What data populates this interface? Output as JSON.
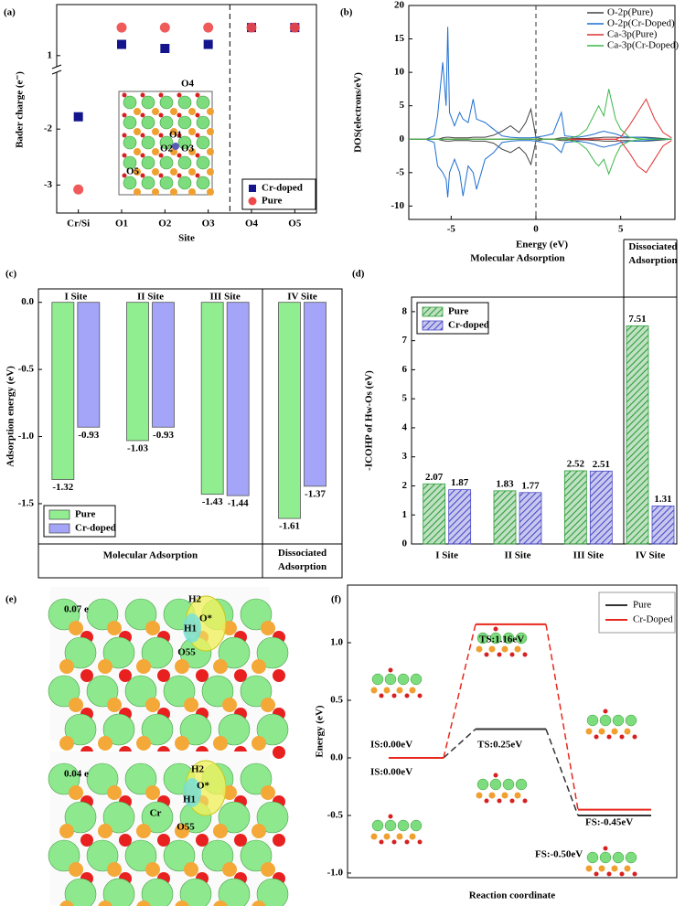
{
  "chart_data": [
    {
      "panel_label": "(a)",
      "type": "scatter",
      "xlabel": "Site",
      "ylabel": "Bader charge (e⁻)",
      "categories": [
        "Cr/Si",
        "O1",
        "O2",
        "O3",
        "O4",
        "O5"
      ],
      "series": [
        {
          "name": "Cr-doped",
          "color": "#14148c",
          "marker": "square",
          "values": [
            -1.78,
            1.22,
            1.14,
            1.22,
            1.55,
            1.55
          ]
        },
        {
          "name": "Pure",
          "color": "#f04848",
          "marker": "circle",
          "values": [
            -3.08,
            1.55,
            1.55,
            1.55,
            1.55,
            1.55
          ]
        }
      ],
      "ylim": [
        -3.5,
        2
      ],
      "ybreak": [
        -1,
        0.8
      ],
      "yticks": [
        -3,
        -2,
        1
      ],
      "legend": "lower right",
      "inset_labels": [
        "O4",
        "O1",
        "O2",
        "O3",
        "O5"
      ]
    },
    {
      "panel_label": "(b)",
      "type": "line",
      "xlabel": "Energy (eV)",
      "ylabel": "DOS(electrons/eV)",
      "xlim": [
        -7.5,
        8.2
      ],
      "xticks": [
        -5,
        0,
        5
      ],
      "ylim": [
        -12,
        20
      ],
      "yticks": [
        -10,
        -5,
        0,
        5,
        10,
        15,
        20
      ],
      "x": [
        -7.5,
        -6.5,
        -6,
        -5.8,
        -5.5,
        -5.3,
        -5.2,
        -5.1,
        -4.8,
        -4.5,
        -4.3,
        -4,
        -3.7,
        -3.5,
        -3,
        -2.5,
        -2,
        -1.5,
        -1,
        -0.6,
        -0.3,
        0,
        0.5,
        1,
        1.5,
        1.7,
        2.5,
        3,
        3.5,
        3.7,
        4,
        4.3,
        4.7,
        5,
        5.5,
        6,
        6.5,
        7,
        7.5,
        8
      ],
      "series": [
        {
          "name": "O-2p(Pure)",
          "color": "#444444",
          "values": [
            0,
            0,
            0,
            0,
            0.2,
            0.3,
            0.3,
            0.3,
            0.2,
            0.2,
            0.2,
            0.2,
            0.3,
            0.3,
            0.3,
            0.6,
            1.2,
            2.0,
            1.0,
            2.5,
            4.5,
            0.3,
            0,
            0,
            0.2,
            0.2,
            0.1,
            0.1,
            0.2,
            0.2,
            0.3,
            0.3,
            0.3,
            0.2,
            0.2,
            0.3,
            0.3,
            0.2,
            0.1,
            0
          ],
          "values_down": [
            0,
            0,
            0,
            0,
            -0.2,
            -0.3,
            -0.3,
            -0.3,
            -0.2,
            -0.2,
            -0.2,
            -0.2,
            -0.3,
            -0.3,
            -0.3,
            -0.6,
            -1.5,
            -2.0,
            -1.2,
            -2.2,
            -3.8,
            -0.3,
            0,
            0,
            -0.2,
            -0.2,
            -0.1,
            -0.1,
            -0.2,
            -0.2,
            -0.3,
            -0.3,
            -0.3,
            -0.2,
            -0.2,
            -0.3,
            -0.3,
            -0.2,
            -0.1,
            0
          ]
        },
        {
          "name": "O-2p(Cr-Doped)",
          "color": "#1f6fd0",
          "values": [
            0,
            0,
            0.5,
            3.5,
            11.5,
            5,
            16.8,
            4,
            2,
            4,
            3,
            2.5,
            6,
            3,
            2.5,
            1.5,
            0.5,
            0.3,
            0.2,
            0.2,
            0.2,
            0.3,
            0.5,
            0.8,
            4,
            0.5,
            0.3,
            0.5,
            0.8,
            1,
            1.2,
            1,
            0.8,
            0.5,
            0.3,
            0.3,
            0.2,
            0.1,
            0,
            0
          ],
          "values_down": [
            0,
            0,
            -0.5,
            -4,
            -5,
            -6,
            -8.7,
            -5,
            -3,
            -5,
            -8.5,
            -4,
            -5,
            -7.5,
            -3,
            -2,
            -0.5,
            -0.3,
            -0.2,
            -0.2,
            -0.2,
            -0.3,
            -0.5,
            -0.8,
            -2,
            -0.5,
            -0.3,
            -0.5,
            -0.8,
            -1,
            -1.2,
            -1,
            -0.8,
            -0.5,
            -0.3,
            -0.3,
            -0.2,
            -0.1,
            0,
            0
          ]
        },
        {
          "name": "Ca-3p(Pure)",
          "color": "#e03030",
          "values": [
            0,
            0,
            0,
            0,
            0,
            0,
            0,
            0,
            0,
            0,
            0,
            0,
            0,
            0,
            0,
            0,
            0,
            0,
            0,
            0,
            0,
            0,
            0,
            0,
            0,
            0,
            0,
            0,
            0,
            0,
            0,
            0,
            0,
            0.3,
            2,
            4,
            6,
            3,
            1,
            0.2
          ],
          "values_down": [
            0,
            0,
            0,
            0,
            0,
            0,
            0,
            0,
            0,
            0,
            0,
            0,
            0,
            0,
            0,
            0,
            0,
            0,
            0,
            0,
            0,
            0,
            0,
            0,
            0,
            0,
            0,
            0,
            0,
            0,
            0,
            0,
            0,
            -0.3,
            -2,
            -4,
            -5,
            -3,
            -1,
            -0.2
          ]
        },
        {
          "name": "Ca-3p(Cr-Doped)",
          "color": "#3cb84a",
          "values": [
            0,
            0,
            0,
            0,
            0,
            0,
            0,
            0,
            0,
            0,
            0,
            0,
            0,
            0,
            0,
            0,
            0,
            0,
            0,
            0,
            0,
            0,
            0,
            0,
            0,
            0,
            0.5,
            1.5,
            4,
            5,
            3.5,
            7.5,
            3,
            1.5,
            0.3,
            0.1,
            0,
            0,
            0,
            0
          ],
          "values_down": [
            0,
            0,
            0,
            0,
            0,
            0,
            0,
            0,
            0,
            0,
            0,
            0,
            0,
            0,
            0,
            0,
            0,
            0,
            0,
            0,
            0,
            0,
            0,
            0,
            0,
            0,
            -0.5,
            -1.5,
            -3.5,
            -4,
            -3,
            -5.2,
            -2.5,
            -1,
            -0.3,
            -0.1,
            0,
            0,
            0,
            0
          ]
        }
      ],
      "legend": "upper right"
    },
    {
      "panel_label": "(c)",
      "type": "bar",
      "ylabel": "Adsorption energy (eV)",
      "categories": [
        "I Site",
        "II Site",
        "III Site",
        "IV Site"
      ],
      "series": [
        {
          "name": "Pure",
          "color": "#90ee90",
          "values": [
            -1.32,
            -1.03,
            -1.43,
            -1.61
          ]
        },
        {
          "name": "Cr-doped",
          "color": "#a4a4f8",
          "values": [
            -0.93,
            -0.93,
            -1.44,
            -1.37
          ]
        }
      ],
      "ylim": [
        -1.8,
        0.1
      ],
      "yticks": [
        {
          "value": 0,
          "label": "0.0"
        },
        -0.5,
        {
          "value": -1,
          "label": "-1.0"
        },
        -1.5
      ],
      "groups": [
        "Molecular Adsorption",
        "Dissociated Adsorption"
      ],
      "legend": "lower left"
    },
    {
      "panel_label": "(d)",
      "type": "bar",
      "hatch": true,
      "ylabel": "-ICOHP of Hw-Os (eV)",
      "categories": [
        "I Site",
        "II Site",
        "III Site",
        "IV Site"
      ],
      "series": [
        {
          "name": "Pure",
          "color": "#2e9e3a",
          "values": [
            2.07,
            1.83,
            2.52,
            7.51
          ]
        },
        {
          "name": "Cr-doped",
          "color": "#4a4ac8",
          "values": [
            1.87,
            1.77,
            2.51,
            1.31
          ]
        }
      ],
      "ylim": [
        0,
        8.5
      ],
      "yticks": [
        0,
        1,
        2,
        3,
        4,
        5,
        6,
        7,
        8
      ],
      "groups": [
        "Molecular Adsorption",
        "Dissociated Adsorption"
      ],
      "legend": "upper left"
    },
    {
      "panel_label": "(f)",
      "type": "energy-profile",
      "xlabel": "Reaction coordinate",
      "ylabel": "Energy (eV)",
      "ylim": [
        -1.04,
        1.5
      ],
      "yticks": [
        {
          "value": -1,
          "label": "-1.0"
        },
        -0.5,
        {
          "value": 0,
          "label": "0.0"
        },
        0.5,
        {
          "value": 1,
          "label": "1.0"
        }
      ],
      "series": [
        {
          "name": "Pure",
          "color": "#333333",
          "values": [
            0,
            0.25,
            -0.5
          ],
          "value_labels": [
            "IS:0.00eV",
            "TS:0.25eV",
            "FS:-0.50eV"
          ]
        },
        {
          "name": "Cr-Doped",
          "color": "#e8281e",
          "values": [
            0,
            1.16,
            -0.45
          ],
          "value_labels": [
            "IS:0.00eV",
            "TS:1.16eV",
            "FS:-0.45eV"
          ]
        }
      ],
      "legend": "upper right"
    }
  ],
  "image_panel": {
    "panel_label": "(e)",
    "charges": [
      "0.07 e",
      "0.04 e"
    ],
    "atom_labels": [
      [
        "H2",
        "H1",
        "O*",
        "O55"
      ],
      [
        "H2",
        "H1",
        "O*",
        "O55",
        "Cr"
      ]
    ]
  }
}
